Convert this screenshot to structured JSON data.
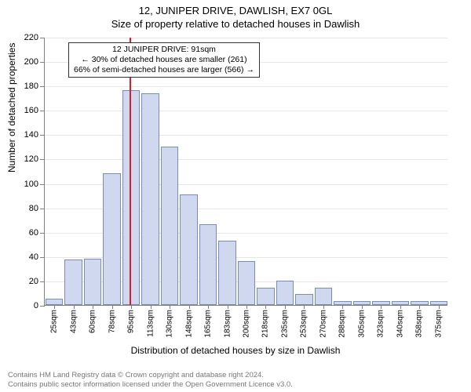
{
  "title_main": "12, JUNIPER DRIVE, DAWLISH, EX7 0GL",
  "title_sub": "Size of property relative to detached houses in Dawlish",
  "ylabel": "Number of detached properties",
  "xlabel": "Distribution of detached houses by size in Dawlish",
  "chart": {
    "type": "histogram",
    "bar_fill": "#cfd8ef",
    "bar_stroke": "#7a8db8",
    "background": "#ffffff",
    "grid_color": "#e6e6e6",
    "axis_color": "#808080",
    "ref_line_color": "#d81e2c",
    "ylim": [
      0,
      220
    ],
    "ytick_step": 20,
    "x_categories": [
      "25sqm",
      "43sqm",
      "60sqm",
      "78sqm",
      "95sqm",
      "113sqm",
      "130sqm",
      "148sqm",
      "165sqm",
      "183sqm",
      "200sqm",
      "218sqm",
      "235sqm",
      "253sqm",
      "270sqm",
      "288sqm",
      "305sqm",
      "323sqm",
      "340sqm",
      "358sqm",
      "375sqm"
    ],
    "values": [
      5,
      37,
      38,
      108,
      176,
      174,
      130,
      91,
      66,
      53,
      36,
      14,
      20,
      9,
      14,
      3,
      3,
      3,
      3,
      3,
      3
    ],
    "ref_index": 3.9,
    "annotation": {
      "line1": "12 JUNIPER DRIVE: 91sqm",
      "line2": "← 30% of detached houses are smaller (261)",
      "line3": "66% of semi-detached houses are larger (566) →"
    }
  },
  "attribution": {
    "line1": "Contains HM Land Registry data © Crown copyright and database right 2024.",
    "line2": "Contains public sector information licensed under the Open Government Licence v3.0."
  },
  "fonts": {
    "title": 13,
    "axis_label": 12,
    "tick": 11,
    "xtick": 10,
    "annotation": 10.5,
    "attribution": 9.5
  }
}
